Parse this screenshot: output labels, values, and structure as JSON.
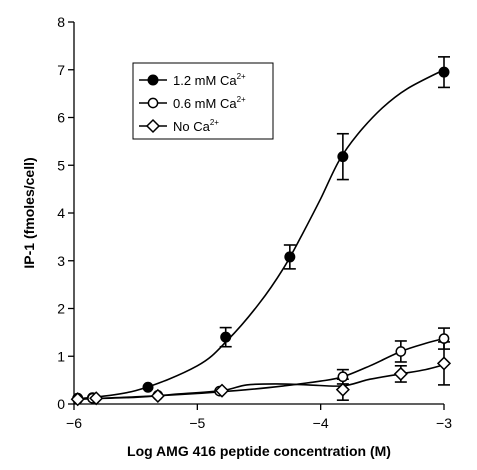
{
  "chart_data": {
    "type": "scatter",
    "xlabel": "Log AMG 416 peptide concentration (M)",
    "ylabel": "IP-1 (fmoles/cell)",
    "xlim": [
      -6,
      -3
    ],
    "ylim": [
      0,
      8
    ],
    "x_ticks": [
      -6,
      -5,
      -4,
      -3
    ],
    "x_tick_labels": [
      "−6",
      "−5",
      "−4",
      "−3"
    ],
    "y_ticks": [
      0,
      1,
      2,
      3,
      4,
      5,
      6,
      7,
      8
    ],
    "y_tick_labels": [
      "0",
      "1",
      "2",
      "3",
      "4",
      "5",
      "6",
      "7",
      "8"
    ],
    "legend_position": "top-left",
    "grid": false,
    "series": [
      {
        "name": "1.2 mM Ca",
        "name_sup": "2+",
        "marker": "filled-circle",
        "points": [
          {
            "x": -5.97,
            "y": 0.12,
            "err": 0
          },
          {
            "x": -5.85,
            "y": 0.13,
            "err": 0
          },
          {
            "x": -5.4,
            "y": 0.35,
            "err": 0
          },
          {
            "x": -4.77,
            "y": 1.4,
            "err": 0.2
          },
          {
            "x": -4.25,
            "y": 3.08,
            "err": 0.25
          },
          {
            "x": -3.82,
            "y": 5.18,
            "err": 0.48
          },
          {
            "x": -3.0,
            "y": 6.95,
            "err": 0.32
          }
        ],
        "curve": [
          [
            -6.0,
            0.1
          ],
          [
            -5.5,
            0.28
          ],
          [
            -5.0,
            0.8
          ],
          [
            -4.75,
            1.35
          ],
          [
            -4.5,
            2.1
          ],
          [
            -4.3,
            2.85
          ],
          [
            -4.15,
            3.55
          ],
          [
            -4.0,
            4.3
          ],
          [
            -3.85,
            5.1
          ],
          [
            -3.7,
            5.65
          ],
          [
            -3.5,
            6.2
          ],
          [
            -3.3,
            6.6
          ],
          [
            -3.0,
            7.0
          ]
        ]
      },
      {
        "name": "0.6 mM Ca",
        "name_sup": "2+",
        "marker": "open-circle",
        "points": [
          {
            "x": -5.97,
            "y": 0.1,
            "err": 0
          },
          {
            "x": -5.85,
            "y": 0.12,
            "err": 0
          },
          {
            "x": -5.32,
            "y": 0.18,
            "err": 0
          },
          {
            "x": -4.82,
            "y": 0.27,
            "err": 0
          },
          {
            "x": -3.82,
            "y": 0.57,
            "err": 0.15
          },
          {
            "x": -3.35,
            "y": 1.1,
            "err": 0.22
          },
          {
            "x": -3.0,
            "y": 1.37,
            "err": 0.22
          }
        ],
        "curve": [
          [
            -6.0,
            0.1
          ],
          [
            -5.5,
            0.15
          ],
          [
            -5.0,
            0.22
          ],
          [
            -4.6,
            0.3
          ],
          [
            -4.3,
            0.38
          ],
          [
            -4.0,
            0.48
          ],
          [
            -3.82,
            0.57
          ],
          [
            -3.6,
            0.8
          ],
          [
            -3.35,
            1.1
          ],
          [
            -3.15,
            1.27
          ],
          [
            -3.0,
            1.37
          ]
        ]
      },
      {
        "name": "No Ca",
        "name_sup": "2+",
        "marker": "open-diamond",
        "points": [
          {
            "x": -5.97,
            "y": 0.1,
            "err": 0
          },
          {
            "x": -5.82,
            "y": 0.12,
            "err": 0
          },
          {
            "x": -5.32,
            "y": 0.17,
            "err": 0
          },
          {
            "x": -4.8,
            "y": 0.28,
            "err": 0
          },
          {
            "x": -3.82,
            "y": 0.3,
            "err": 0.22
          },
          {
            "x": -3.35,
            "y": 0.63,
            "err": 0.17
          },
          {
            "x": -3.0,
            "y": 0.85,
            "err": 0.45
          }
        ],
        "curve": [
          [
            -6.0,
            0.1
          ],
          [
            -5.5,
            0.14
          ],
          [
            -5.2,
            0.2
          ],
          [
            -4.8,
            0.28
          ],
          [
            -4.6,
            0.4
          ],
          [
            -4.35,
            0.42
          ],
          [
            -4.1,
            0.4
          ],
          [
            -3.82,
            0.38
          ],
          [
            -3.6,
            0.52
          ],
          [
            -3.35,
            0.63
          ],
          [
            -3.15,
            0.72
          ],
          [
            -3.0,
            0.82
          ]
        ]
      }
    ]
  }
}
